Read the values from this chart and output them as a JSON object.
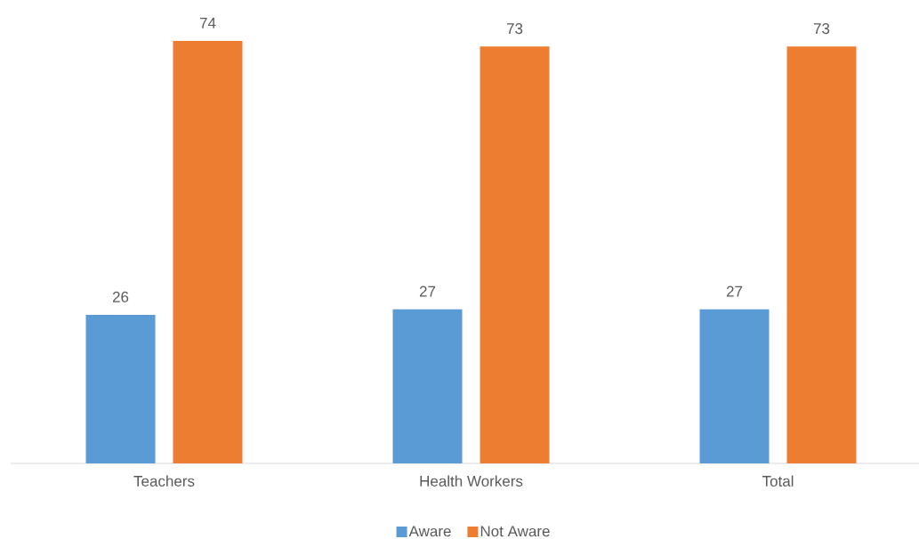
{
  "chart_data": {
    "type": "bar",
    "categories": [
      "Teachers",
      "Health Workers",
      "Total"
    ],
    "series": [
      {
        "name": "Aware",
        "color": "#5b9bd5",
        "values": [
          26,
          27,
          27
        ]
      },
      {
        "name": "Not Aware",
        "color": "#ed7d31",
        "values": [
          74,
          73,
          73
        ]
      }
    ],
    "data_labels": true,
    "legend": "bottom"
  }
}
